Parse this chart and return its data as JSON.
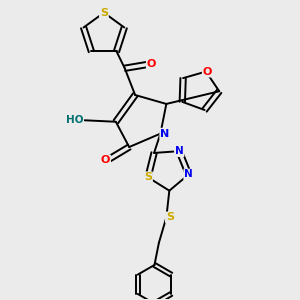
{
  "background_color": "#ebebeb",
  "bond_width": 1.4,
  "atom_colors": {
    "S": "#ccaa00",
    "O": "#ff0000",
    "N": "#0000ee",
    "C": "#000000",
    "H": "#007070"
  },
  "figsize": [
    3.0,
    3.0
  ],
  "dpi": 100,
  "xlim": [
    0,
    10
  ],
  "ylim": [
    0,
    10
  ]
}
